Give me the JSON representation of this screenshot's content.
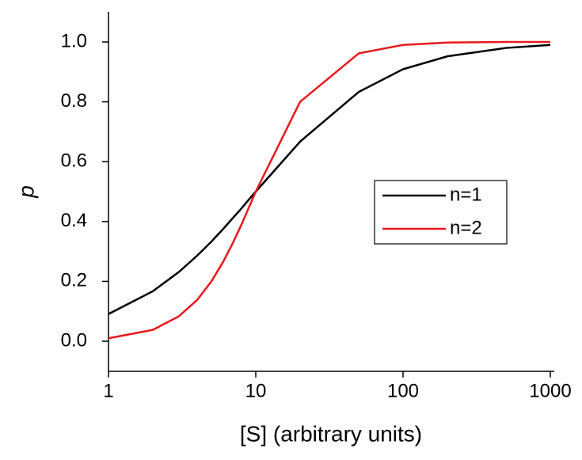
{
  "chart_data": {
    "type": "line",
    "x_label": "[S] (arbitrary units)",
    "y_label": "p",
    "x": [
      1,
      2,
      3,
      4,
      5,
      6,
      7,
      8,
      9,
      10,
      20,
      50,
      100,
      200,
      500,
      1000
    ],
    "series": [
      {
        "name": "n=1",
        "color": "#000000",
        "values": [
          0.091,
          0.167,
          0.231,
          0.286,
          0.333,
          0.375,
          0.412,
          0.444,
          0.474,
          0.5,
          0.667,
          0.833,
          0.909,
          0.952,
          0.98,
          0.99
        ]
      },
      {
        "name": "n=2",
        "color": "#e8191c",
        "values": [
          0.01,
          0.038,
          0.083,
          0.138,
          0.2,
          0.265,
          0.329,
          0.39,
          0.448,
          0.5,
          0.8,
          0.962,
          0.99,
          0.998,
          1.0,
          1.0
        ]
      }
    ],
    "xlim": [
      1,
      1000
    ],
    "xticks": [
      1,
      10,
      100,
      1000
    ],
    "log_x": true,
    "ylim": [
      -0.1,
      1.1
    ],
    "yticks": [
      {
        "value": 0,
        "label": "0.0"
      },
      0.2,
      0.4,
      0.6,
      0.8,
      {
        "value": 1,
        "label": "1.0"
      }
    ],
    "legend": "center right"
  }
}
